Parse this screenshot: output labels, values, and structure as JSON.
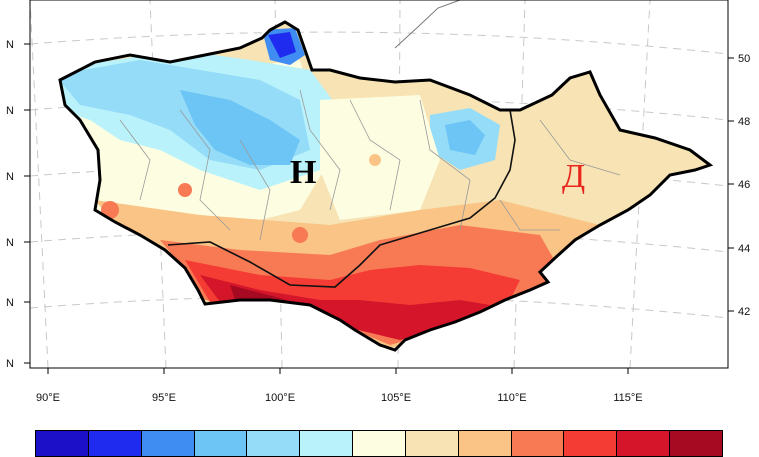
{
  "map": {
    "lon_ticks": [
      {
        "value": 90,
        "label": "90°E"
      },
      {
        "value": 95,
        "label": "95°E"
      },
      {
        "value": 100,
        "label": "100°E"
      },
      {
        "value": 105,
        "label": "105°E"
      },
      {
        "value": 110,
        "label": "110°E"
      },
      {
        "value": 115,
        "label": "115°E"
      }
    ],
    "lat_ticks_left": [
      "N",
      "N",
      "N",
      "N",
      "N",
      "N"
    ],
    "lat_ticks_right": [
      "50",
      "48",
      "46",
      "44",
      "42"
    ],
    "region_labels": {
      "n": "Н",
      "d": "Д"
    },
    "colors": {
      "outline": "#000000",
      "divider": "#111111",
      "province_borders": "#9a9a9a",
      "grid": "#bdbdbd"
    }
  },
  "colorbar": {
    "colors": [
      "#1c10c9",
      "#1f2cf0",
      "#3f8cf2",
      "#6cc5f5",
      "#94dcf7",
      "#baf2fb",
      "#fdfde2",
      "#f7e3b4",
      "#f9c486",
      "#f87a55",
      "#f43c34",
      "#d5162a",
      "#a60a22"
    ]
  }
}
